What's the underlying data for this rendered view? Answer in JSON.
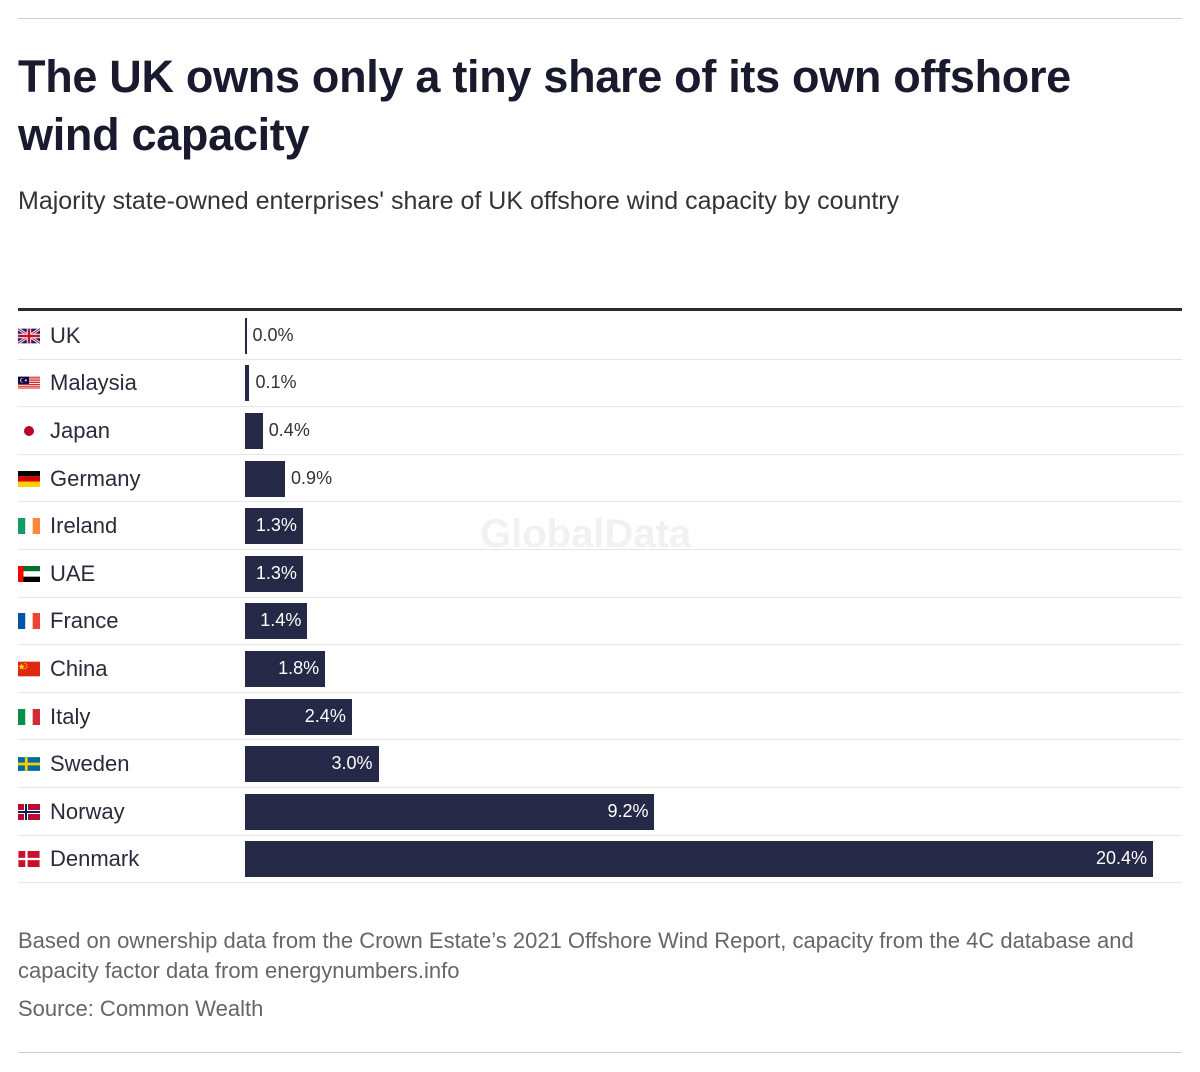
{
  "watermark": "GlobalData",
  "note": "Based on ownership data from the Crown Estate’s 2021 Offshore Wind Report, capacity from the 4C database and capacity factor data from energynumbers.info",
  "source": "Source: Common Wealth",
  "colors": {
    "bar": "#262848",
    "title": "#1a1a2e"
  },
  "chart_data": {
    "type": "bar",
    "orientation": "horizontal",
    "title": "The UK owns only a tiny share of its own offshore wind capacity",
    "subtitle": "Majority state-owned enterprises' share of UK offshore wind capacity by country",
    "categories": [
      "UK",
      "Malaysia",
      "Japan",
      "Germany",
      "Ireland",
      "UAE",
      "France",
      "China",
      "Italy",
      "Sweden",
      "Norway",
      "Denmark"
    ],
    "flags": [
      "flag-uk-icon",
      "flag-malaysia-icon",
      "flag-japan-icon",
      "flag-germany-icon",
      "flag-ireland-icon",
      "flag-uae-icon",
      "flag-france-icon",
      "flag-china-icon",
      "flag-italy-icon",
      "flag-sweden-icon",
      "flag-norway-icon",
      "flag-denmark-icon"
    ],
    "values": [
      0.0,
      0.1,
      0.4,
      0.9,
      1.3,
      1.3,
      1.4,
      1.8,
      2.4,
      3.0,
      9.2,
      20.4
    ],
    "labels": [
      "0.0%",
      "0.1%",
      "0.4%",
      "0.9%",
      "1.3%",
      "1.3%",
      "1.4%",
      "1.8%",
      "2.4%",
      "3.0%",
      "9.2%",
      "20.4%"
    ],
    "unit": "%",
    "xlim": [
      0,
      20.4
    ],
    "grid": false,
    "legend": "none"
  }
}
